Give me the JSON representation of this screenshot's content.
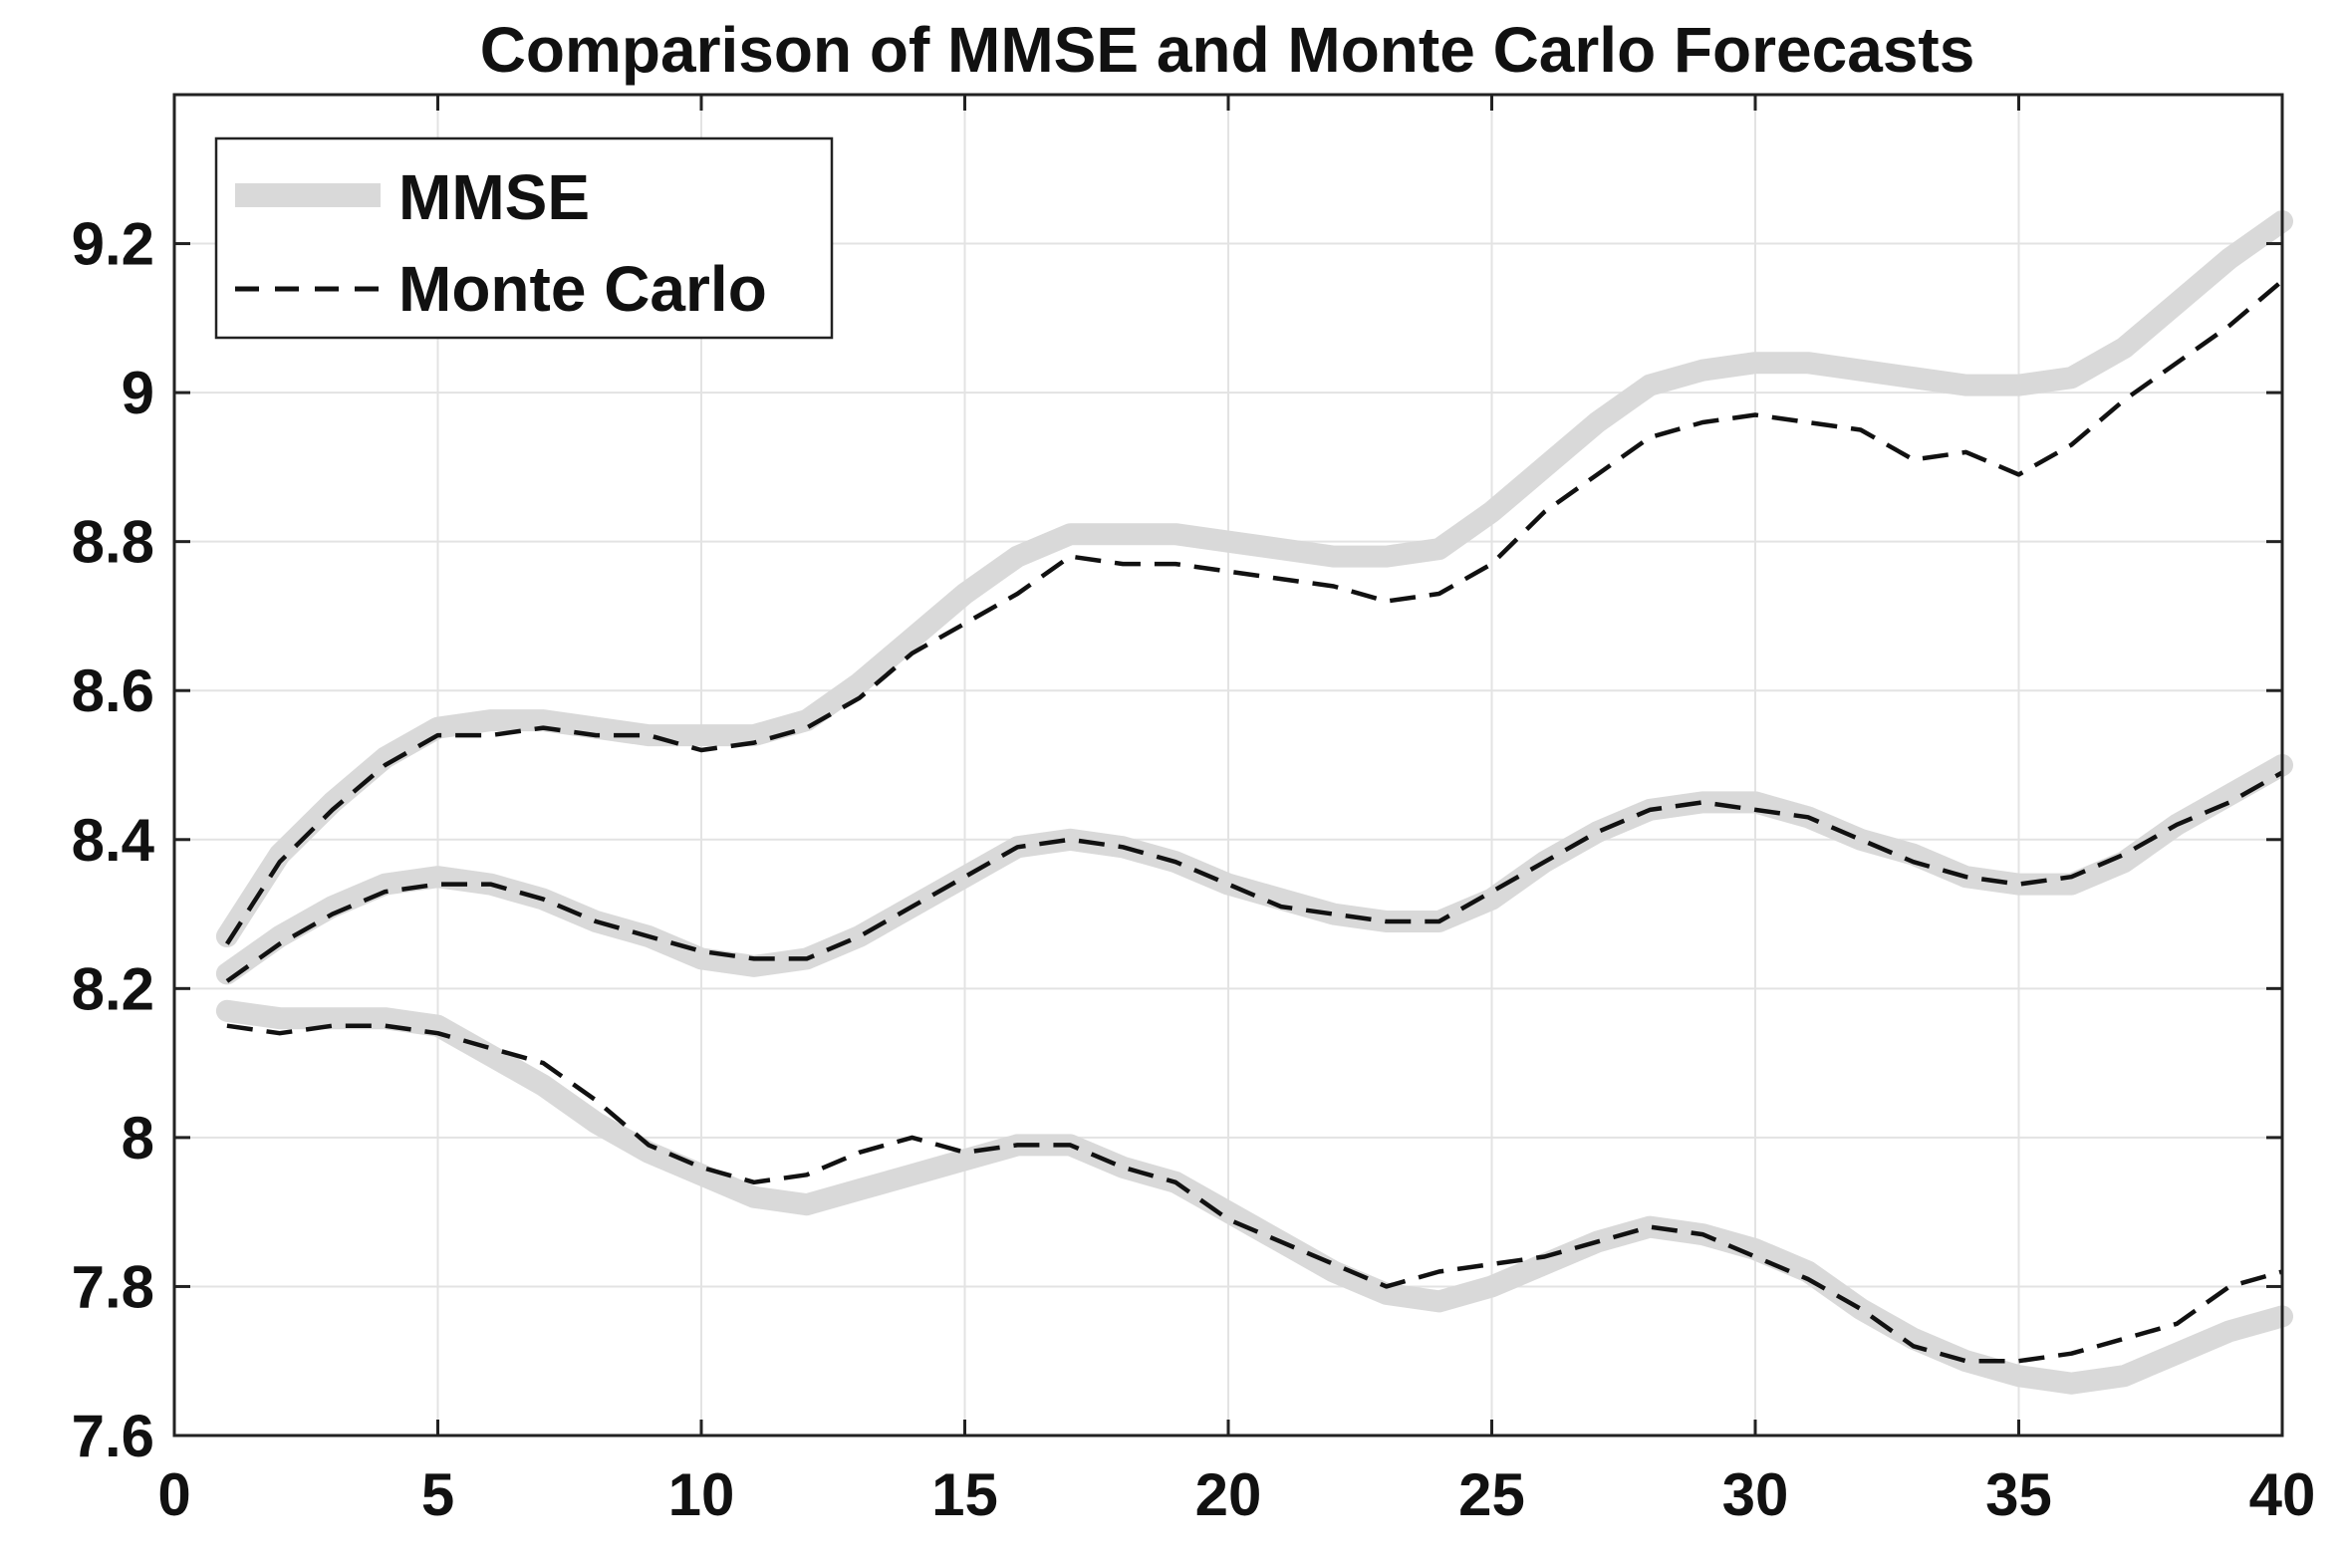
{
  "chart_data": {
    "type": "line",
    "title": "Comparison of MMSE and Monte Carlo Forecasts",
    "xlabel": "",
    "ylabel": "",
    "xlim": [
      0,
      40
    ],
    "ylim": [
      7.6,
      9.4
    ],
    "xticks": [
      0,
      5,
      10,
      15,
      20,
      25,
      30,
      35,
      40
    ],
    "yticks": [
      7.6,
      7.8,
      8,
      8.2,
      8.4,
      8.6,
      8.8,
      9,
      9.2
    ],
    "xtick_labels": [
      "0",
      "5",
      "10",
      "15",
      "20",
      "25",
      "30",
      "35",
      "40"
    ],
    "ytick_labels": [
      "7.6",
      "7.8",
      "8",
      "8.2",
      "8.4",
      "8.6",
      "8.8",
      "9",
      "9.2"
    ],
    "grid": true,
    "legend_position": "top-left",
    "legend": [
      "MMSE",
      "Monte Carlo"
    ],
    "x": [
      1,
      2,
      3,
      4,
      5,
      6,
      7,
      8,
      9,
      10,
      11,
      12,
      13,
      14,
      15,
      16,
      17,
      18,
      19,
      20,
      21,
      22,
      23,
      24,
      25,
      26,
      27,
      28,
      29,
      30,
      31,
      32,
      33,
      34,
      35,
      36,
      37,
      38,
      39,
      40
    ],
    "series": [
      {
        "group": "MMSE",
        "color": "#d9d9d9",
        "style": "solid",
        "values": [
          8.27,
          8.38,
          8.45,
          8.51,
          8.55,
          8.56,
          8.56,
          8.55,
          8.54,
          8.54,
          8.54,
          8.56,
          8.61,
          8.67,
          8.73,
          8.78,
          8.81,
          8.81,
          8.81,
          8.8,
          8.79,
          8.78,
          8.78,
          8.79,
          8.84,
          8.9,
          8.96,
          9.01,
          9.03,
          9.04,
          9.04,
          9.03,
          9.02,
          9.01,
          9.01,
          9.02,
          9.06,
          9.12,
          9.18,
          9.23
        ]
      },
      {
        "group": "Monte Carlo",
        "color": "#111111",
        "style": "dashed",
        "values": [
          8.26,
          8.37,
          8.44,
          8.5,
          8.54,
          8.54,
          8.55,
          8.54,
          8.54,
          8.52,
          8.53,
          8.55,
          8.59,
          8.65,
          8.69,
          8.73,
          8.78,
          8.77,
          8.77,
          8.76,
          8.75,
          8.74,
          8.72,
          8.73,
          8.77,
          8.84,
          8.89,
          8.94,
          8.96,
          8.97,
          8.96,
          8.95,
          8.91,
          8.92,
          8.89,
          8.93,
          8.99,
          9.04,
          9.09,
          9.15
        ]
      },
      {
        "group": "MMSE",
        "color": "#d9d9d9",
        "style": "solid",
        "values": [
          8.22,
          8.27,
          8.31,
          8.34,
          8.35,
          8.34,
          8.32,
          8.29,
          8.27,
          8.24,
          8.23,
          8.24,
          8.27,
          8.31,
          8.35,
          8.39,
          8.4,
          8.39,
          8.37,
          8.34,
          8.32,
          8.3,
          8.29,
          8.29,
          8.32,
          8.37,
          8.41,
          8.44,
          8.45,
          8.45,
          8.43,
          8.4,
          8.38,
          8.35,
          8.34,
          8.34,
          8.37,
          8.42,
          8.46,
          8.5
        ]
      },
      {
        "group": "Monte Carlo",
        "color": "#111111",
        "style": "dashed",
        "values": [
          8.21,
          8.26,
          8.3,
          8.33,
          8.34,
          8.34,
          8.32,
          8.29,
          8.27,
          8.25,
          8.24,
          8.24,
          8.27,
          8.31,
          8.35,
          8.39,
          8.4,
          8.39,
          8.37,
          8.34,
          8.31,
          8.3,
          8.29,
          8.29,
          8.33,
          8.37,
          8.41,
          8.44,
          8.45,
          8.44,
          8.43,
          8.4,
          8.37,
          8.35,
          8.34,
          8.35,
          8.38,
          8.42,
          8.45,
          8.49
        ]
      },
      {
        "group": "MMSE",
        "color": "#d9d9d9",
        "style": "solid",
        "values": [
          8.17,
          8.16,
          8.16,
          8.16,
          8.15,
          8.11,
          8.07,
          8.02,
          7.98,
          7.95,
          7.92,
          7.91,
          7.93,
          7.95,
          7.97,
          7.99,
          7.99,
          7.96,
          7.94,
          7.9,
          7.86,
          7.82,
          7.79,
          7.78,
          7.8,
          7.83,
          7.86,
          7.88,
          7.87,
          7.85,
          7.82,
          7.77,
          7.73,
          7.7,
          7.68,
          7.67,
          7.68,
          7.71,
          7.74,
          7.76
        ]
      },
      {
        "group": "Monte Carlo",
        "color": "#111111",
        "style": "dashed",
        "values": [
          8.15,
          8.14,
          8.15,
          8.15,
          8.14,
          8.12,
          8.1,
          8.05,
          7.99,
          7.96,
          7.94,
          7.95,
          7.98,
          8.0,
          7.98,
          7.99,
          7.99,
          7.96,
          7.94,
          7.89,
          7.86,
          7.83,
          7.8,
          7.82,
          7.83,
          7.84,
          7.86,
          7.88,
          7.87,
          7.84,
          7.81,
          7.77,
          7.72,
          7.7,
          7.7,
          7.71,
          7.73,
          7.75,
          7.8,
          7.82
        ]
      }
    ]
  }
}
